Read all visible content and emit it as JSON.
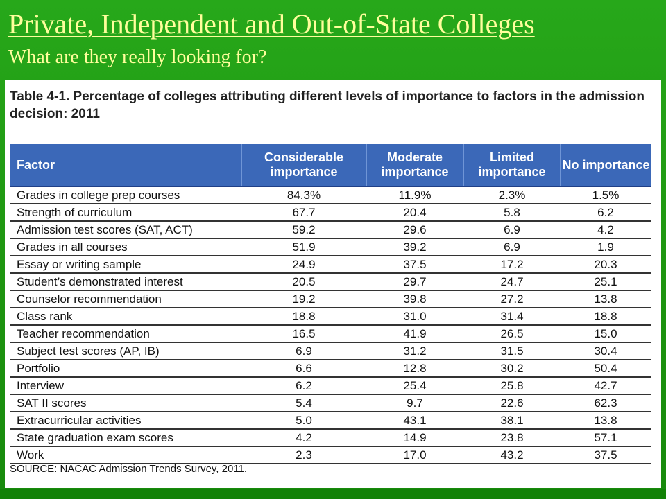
{
  "slide": {
    "title": "Private, Independent and Out-of-State Colleges",
    "subtitle": "What are they really looking for?"
  },
  "table": {
    "caption": "Table 4-1. Percentage of colleges attributing different levels of importance to factors in the admission decision: 2011",
    "columns": [
      "Factor",
      "Considerable importance",
      "Moderate importance",
      "Limited importance",
      "No importance"
    ],
    "rows": [
      [
        "Grades in college prep courses",
        "84.3%",
        "11.9%",
        "2.3%",
        "1.5%"
      ],
      [
        "Strength of curriculum",
        "67.7",
        "20.4",
        "5.8",
        "6.2"
      ],
      [
        "Admission test scores (SAT, ACT)",
        "59.2",
        "29.6",
        "6.9",
        "4.2"
      ],
      [
        "Grades in all courses",
        "51.9",
        "39.2",
        "6.9",
        "1.9"
      ],
      [
        "Essay or writing sample",
        "24.9",
        "37.5",
        "17.2",
        "20.3"
      ],
      [
        "Student’s demonstrated interest",
        "20.5",
        "29.7",
        "24.7",
        "25.1"
      ],
      [
        "Counselor recommendation",
        "19.2",
        "39.8",
        "27.2",
        "13.8"
      ],
      [
        "Class rank",
        "18.8",
        "31.0",
        "31.4",
        "18.8"
      ],
      [
        "Teacher recommendation",
        "16.5",
        "41.9",
        "26.5",
        "15.0"
      ],
      [
        "Subject test scores (AP, IB)",
        "6.9",
        "31.2",
        "31.5",
        "30.4"
      ],
      [
        "Portfolio",
        "6.6",
        "12.8",
        "30.2",
        "50.4"
      ],
      [
        "Interview",
        "6.2",
        "25.4",
        "25.8",
        "42.7"
      ],
      [
        "SAT II scores",
        "5.4",
        "9.7",
        "22.6",
        "62.3"
      ],
      [
        "Extracurricular activities",
        "5.0",
        "43.1",
        "38.1",
        "13.8"
      ],
      [
        "State graduation exam scores",
        "4.2",
        "14.9",
        "23.8",
        "57.1"
      ],
      [
        "Work",
        "2.3",
        "17.0",
        "43.2",
        "37.5"
      ]
    ],
    "source": "SOURCE: NACAC Admission Trends Survey, 2011."
  },
  "colors": {
    "slide_background": "#1f9a12",
    "title_text": "#fffe9c",
    "header_background": "#3b68b8"
  }
}
